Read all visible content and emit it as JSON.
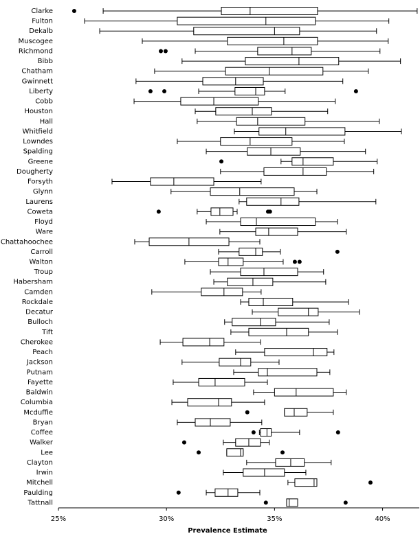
{
  "chart_data": {
    "type": "boxplot",
    "x_label": "Prevalence Estimate",
    "categories": [
      "Clarke",
      "Fulton",
      "Dekalb",
      "Muscogee",
      "Richmond",
      "Bibb",
      "Chatham",
      "Gwinnett",
      "Liberty",
      "Cobb",
      "Houston",
      "Hall",
      "Whitfield",
      "Lowndes",
      "Spalding",
      "Greene",
      "Dougherty",
      "Forsyth",
      "Glynn",
      "Laurens",
      "Coweta",
      "Floyd",
      "Ware",
      "Chattahoochee",
      "Carroll",
      "Walton",
      "Troup",
      "Habersham",
      "Camden",
      "Rockdale",
      "Decatur",
      "Bulloch",
      "Tift",
      "Cherokee",
      "Peach",
      "Jackson",
      "Putnam",
      "Fayette",
      "Baldwin",
      "Columbia",
      "Mcduffie",
      "Bryan",
      "Coffee",
      "Walker",
      "Lee",
      "Clayton",
      "Irwin",
      "Mitchell",
      "Paulding",
      "Tattnall"
    ],
    "boxes": [
      {
        "low": 27.07,
        "q1": 32.54,
        "median": 33.87,
        "q3": 36.99,
        "high": 41.6,
        "outliers": [
          25.73
        ]
      },
      {
        "low": 26.21,
        "q1": 30.5,
        "median": 34.6,
        "q3": 36.89,
        "high": 40.29,
        "outliers": []
      },
      {
        "low": 26.91,
        "q1": 31.26,
        "median": 35.0,
        "q3": 36.16,
        "high": 39.72,
        "outliers": []
      },
      {
        "low": 28.88,
        "q1": 32.82,
        "median": 35.43,
        "q3": 36.99,
        "high": 40.26,
        "outliers": []
      },
      {
        "low": 31.33,
        "q1": 34.22,
        "median": 35.81,
        "q3": 36.7,
        "high": 39.88,
        "outliers": [
          29.74,
          29.96
        ]
      },
      {
        "low": 30.72,
        "q1": 33.65,
        "median": 36.13,
        "q3": 37.97,
        "high": 40.83,
        "outliers": []
      },
      {
        "low": 29.45,
        "q1": 32.73,
        "median": 34.76,
        "q3": 37.24,
        "high": 39.34,
        "outliers": []
      },
      {
        "low": 28.59,
        "q1": 31.68,
        "median": 33.2,
        "q3": 34.48,
        "high": 38.16,
        "outliers": []
      },
      {
        "low": 31.49,
        "q1": 33.17,
        "median": 34.13,
        "q3": 34.54,
        "high": 35.49,
        "outliers": [
          29.26,
          29.9,
          38.77
        ]
      },
      {
        "low": 28.5,
        "q1": 30.66,
        "median": 32.19,
        "q3": 34.25,
        "high": 37.81,
        "outliers": []
      },
      {
        "low": 31.33,
        "q1": 32.28,
        "median": 33.97,
        "q3": 34.86,
        "high": 37.46,
        "outliers": []
      },
      {
        "low": 31.42,
        "q1": 33.24,
        "median": 34.22,
        "q3": 36.41,
        "high": 39.85,
        "outliers": []
      },
      {
        "low": 33.14,
        "q1": 34.28,
        "median": 35.52,
        "q3": 38.26,
        "high": 40.87,
        "outliers": []
      },
      {
        "low": 30.5,
        "q1": 32.5,
        "median": 33.87,
        "q3": 35.81,
        "high": 38.23,
        "outliers": []
      },
      {
        "low": 31.84,
        "q1": 33.74,
        "median": 34.83,
        "q3": 36.19,
        "high": 39.21,
        "outliers": []
      },
      {
        "low": 35.3,
        "q1": 35.81,
        "median": 36.32,
        "q3": 37.72,
        "high": 39.75,
        "outliers": [
          32.54
        ]
      },
      {
        "low": 32.5,
        "q1": 34.51,
        "median": 36.32,
        "q3": 37.4,
        "high": 39.59,
        "outliers": []
      },
      {
        "low": 27.48,
        "q1": 29.26,
        "median": 30.34,
        "q3": 32.19,
        "high": 34.38,
        "outliers": []
      },
      {
        "low": 30.21,
        "q1": 32.03,
        "median": 33.39,
        "q3": 35.91,
        "high": 36.96,
        "outliers": []
      },
      {
        "low": 33.36,
        "q1": 33.71,
        "median": 35.3,
        "q3": 36.13,
        "high": 39.69,
        "outliers": []
      },
      {
        "low": 31.42,
        "q1": 32.06,
        "median": 32.47,
        "q3": 33.08,
        "high": 33.27,
        "outliers": [
          29.64,
          34.7,
          34.79
        ]
      },
      {
        "low": 31.84,
        "q1": 33.43,
        "median": 34.16,
        "q3": 36.89,
        "high": 37.91,
        "outliers": []
      },
      {
        "low": 32.47,
        "q1": 34.13,
        "median": 34.73,
        "q3": 36.07,
        "high": 38.32,
        "outliers": []
      },
      {
        "low": 28.53,
        "q1": 29.2,
        "median": 31.04,
        "q3": 32.89,
        "high": 34.32,
        "outliers": []
      },
      {
        "low": 32.41,
        "q1": 33.36,
        "median": 34.13,
        "q3": 34.44,
        "high": 35.27,
        "outliers": [
          37.91
        ]
      },
      {
        "low": 30.85,
        "q1": 32.41,
        "median": 32.85,
        "q3": 33.55,
        "high": 35.4,
        "outliers": [
          35.94,
          36.16
        ]
      },
      {
        "low": 32.03,
        "q1": 33.43,
        "median": 34.51,
        "q3": 36.07,
        "high": 37.27,
        "outliers": []
      },
      {
        "low": 32.19,
        "q1": 32.82,
        "median": 34.0,
        "q3": 34.92,
        "high": 37.37,
        "outliers": []
      },
      {
        "low": 29.32,
        "q1": 31.61,
        "median": 32.66,
        "q3": 33.52,
        "high": 34.38,
        "outliers": []
      },
      {
        "low": 33.43,
        "q1": 33.81,
        "median": 34.48,
        "q3": 35.84,
        "high": 38.42,
        "outliers": []
      },
      {
        "low": 33.97,
        "q1": 35.17,
        "median": 36.57,
        "q3": 37.02,
        "high": 38.93,
        "outliers": []
      },
      {
        "low": 32.69,
        "q1": 33.04,
        "median": 34.35,
        "q3": 35.05,
        "high": 37.53,
        "outliers": []
      },
      {
        "low": 32.98,
        "q1": 33.81,
        "median": 35.56,
        "q3": 36.57,
        "high": 37.91,
        "outliers": []
      },
      {
        "low": 29.71,
        "q1": 30.76,
        "median": 32.0,
        "q3": 32.66,
        "high": 34.35,
        "outliers": []
      },
      {
        "low": 33.2,
        "q1": 34.54,
        "median": 36.8,
        "q3": 37.43,
        "high": 37.75,
        "outliers": []
      },
      {
        "low": 30.72,
        "q1": 32.44,
        "median": 33.43,
        "q3": 33.9,
        "high": 35.21,
        "outliers": []
      },
      {
        "low": 33.11,
        "q1": 34.25,
        "median": 34.67,
        "q3": 36.96,
        "high": 37.56,
        "outliers": []
      },
      {
        "low": 30.31,
        "q1": 31.49,
        "median": 32.25,
        "q3": 33.62,
        "high": 34.67,
        "outliers": []
      },
      {
        "low": 34.03,
        "q1": 35.0,
        "median": 36.0,
        "q3": 37.72,
        "high": 38.32,
        "outliers": []
      },
      {
        "low": 30.25,
        "q1": 30.98,
        "median": 32.41,
        "q3": 33.01,
        "high": 34.54,
        "outliers": []
      },
      {
        "low": 35.46,
        "q1": 35.46,
        "median": 35.91,
        "q3": 36.51,
        "high": 37.72,
        "outliers": [
          33.74
        ]
      },
      {
        "low": 30.5,
        "q1": 31.33,
        "median": 32.03,
        "q3": 32.95,
        "high": 34.41,
        "outliers": []
      },
      {
        "low": 34.3,
        "q1": 34.35,
        "median": 34.65,
        "q3": 34.85,
        "high": 36.16,
        "outliers": [
          34.03,
          37.94
        ]
      },
      {
        "low": 32.63,
        "q1": 33.2,
        "median": 33.81,
        "q3": 34.35,
        "high": 34.76,
        "outliers": [
          30.82
        ]
      },
      {
        "low": 32.79,
        "q1": 32.79,
        "median": 33.43,
        "q3": 33.55,
        "high": 33.55,
        "outliers": [
          31.49,
          35.37
        ]
      },
      {
        "low": 33.71,
        "q1": 35.05,
        "median": 35.75,
        "q3": 36.38,
        "high": 37.62,
        "outliers": []
      },
      {
        "low": 32.63,
        "q1": 33.55,
        "median": 34.54,
        "q3": 35.46,
        "high": 36.45,
        "outliers": []
      },
      {
        "low": 35.62,
        "q1": 35.94,
        "median": 36.83,
        "q3": 36.96,
        "high": 36.96,
        "outliers": [
          39.44
        ]
      },
      {
        "low": 31.84,
        "q1": 32.25,
        "median": 32.85,
        "q3": 33.3,
        "high": 34.32,
        "outliers": [
          30.56
        ]
      },
      {
        "low": 35.56,
        "q1": 35.56,
        "median": 35.68,
        "q3": 36.07,
        "high": 36.07,
        "outliers": [
          34.6,
          38.29
        ]
      }
    ],
    "xlim": [
      25,
      41.7
    ],
    "xticks": [
      {
        "value": 25,
        "label": "25%"
      },
      {
        "value": 30,
        "label": "30%"
      },
      {
        "value": 35,
        "label": "35%"
      },
      {
        "value": 40,
        "label": "40%"
      }
    ],
    "color": "#000000",
    "box_fill": "#ffffff"
  }
}
